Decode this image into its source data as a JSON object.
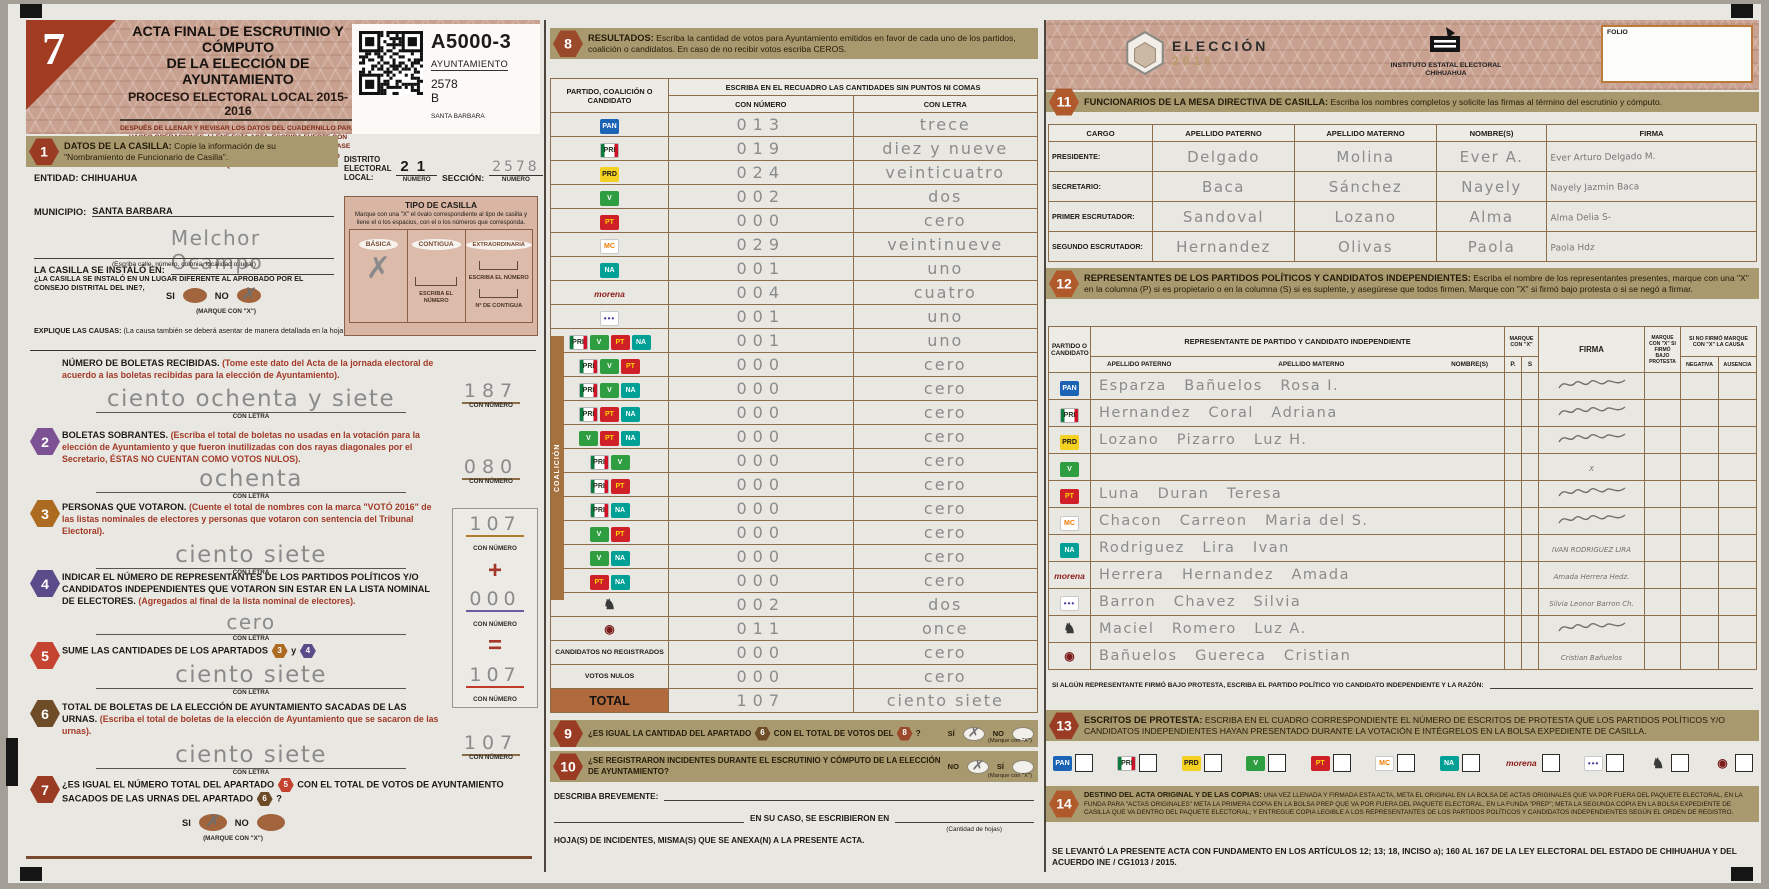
{
  "labels": {
    "con_letra": "CON LETRA",
    "con_numero": "CON NÚMERO",
    "numero_caption": "NÚMERO",
    "marque_mayus": "(MARQUE CON \"X\")",
    "marque_min": "(Marque con \"X\")",
    "si": "SI",
    "si_acc": "SÍ",
    "no": "NO",
    "y": "y",
    "x_glyph": "✗",
    "folio": "FOLIO"
  },
  "header": {
    "page_number": "7",
    "title1": "ACTA FINAL DE ESCRUTINIO Y CÓMPUTO",
    "title2": "DE LA ELECCIÓN DE AYUNTAMIENTO",
    "subtitle": "PROCESO ELECTORAL LOCAL 2015-2016",
    "instructions": "DESPUÉS DE LLENAR Y REVISAR LOS DATOS DEL CUADERNILLO PARA HACER OPERACIONES, LLENE ESTA ACTA. ESCRIBA FUERTE CON BOLÍGRAFO DE TINTA NEGRA Y PUNTO MEDIANO SOBRE UNA BASE SÓLIDA CON LETRA DE MOLDE EN MAYÚSCULAS APLICANDO SUFICIENTE APOYO PARA QUE LAS COPIAS SEAN LEGIBLES",
    "code": "A5000-3",
    "code_type": "AYUNTAMIENTO",
    "code_section": "2578",
    "code_casilla": "B",
    "code_locality": "SANTA BARBARA"
  },
  "s1": {
    "badge": "1",
    "title": "DATOS DE LA CASILLA:",
    "desc": "Copie la información de su \"Nombramiento de Funcionario de Casilla\".",
    "entidad_label": "ENTIDAD:",
    "entidad": "CHIHUAHUA",
    "distrito_label": "DISTRITO ELECTORAL LOCAL:",
    "distrito": "21",
    "seccion_label": "SECCIÓN:",
    "seccion": "2578",
    "municipio_label": "MUNICIPIO:",
    "municipio": "SANTA BARBARA",
    "instalado_label": "LA CASILLA SE INSTALÓ EN:",
    "instalado": "Melchor Ocampo",
    "address_hint": "(Escriba calle, número, colonia, localidad o lugar)",
    "ine_q": "¿LA CASILLA SE INSTALÓ EN UN LUGAR DIFERENTE AL APROBADO POR EL CONSEJO DISTRITAL DEL INE?,",
    "explique": "EXPLIQUE LAS CAUSAS:",
    "explique_hint": "(La causa también se deberá asentar de manera detallada en la hoja de incidentes)"
  },
  "tipo": {
    "title": "TIPO DE CASILLA",
    "hint": "Marque con una \"X\" el óvalo correspondiente al tipo de casilla y llene el o los espacios, con el o los números que corresponda.",
    "basica": "BÁSICA",
    "contigua": "CONTIGUA",
    "extraordinaria": "EXTRAORDINARIA",
    "escriba": "ESCRIBA EL NÚMERO",
    "no_contigua": "Nº DE CONTIGUA"
  },
  "boletas": {
    "title": "NÚMERO DE BOLETAS RECIBIDAS.",
    "note": "(Tome este dato del Acta de la jornada electoral de acuerdo a las boletas recibidas para la elección de Ayuntamiento).",
    "letra": "ciento ochenta y siete",
    "numero": "187"
  },
  "s2": {
    "badge": "2",
    "title": "BOLETAS SO​BRANTES.",
    "note": "(Escriba el total de boletas no usadas en la votación para la elección de Ayuntamiento y que fueron inutilizadas con dos rayas diagonales por el Secretario, ÉSTAS NO CUENTAN COMO VOTOS NULOS).",
    "letra": "ochenta",
    "numero": "080"
  },
  "s3": {
    "badge": "3",
    "title": "PERSONAS QUE VOTARON.",
    "note": "(Cuente el total de nombres con la marca \"VOTÓ 2016\" de las listas nominales de electores y personas que votaron con sentencia del Tribunal Electoral).",
    "letra": "ciento siete",
    "numero": "107"
  },
  "s4": {
    "badge": "4",
    "title": "INDICAR EL NÚMERO DE REPRESENTANTES DE LOS PARTIDOS POLÍTICOS Y/O CANDIDATOS INDEPENDIENTES QUE VOTARON SIN ESTAR EN LA LISTA NOMINAL DE ELECTORES.",
    "note": "(Agregados al final de la lista nominal de electores).",
    "letra": "cero",
    "numero": "000",
    "plus": "+"
  },
  "s5": {
    "badge": "5",
    "title": "SUME LAS CANTIDADES DE LOS APARTADOS",
    "ref1": "3",
    "ref2": "4",
    "letra": "ciento siete",
    "numero": "107",
    "equals": "="
  },
  "s6": {
    "badge": "6",
    "title": "TOTAL DE BOLETAS DE LA ELECCIÓN DE AYUNTAMIENTO SACADAS DE LAS URNAS.",
    "note": "(Escriba el total de boletas de la elección de Ayuntamiento que se sacaron de las urnas).",
    "letra": "ciento siete",
    "numero": "107"
  },
  "s7": {
    "badge": "7",
    "q1": "¿ES IGUAL EL NÚMERO TOTAL DEL APARTADO",
    "ref1": "5",
    "q2": "CON EL TOTAL DE VOTOS DE AYUNTAMIENTO SACADOS DE LAS URNAS DEL APARTADO",
    "ref2": "6",
    "q3": "?"
  },
  "results": {
    "badge": "8",
    "title": "RESULTADOS:",
    "desc": "Escriba la cantidad de votos para Ayuntamiento emitidos en favor de cada uno de los partidos, coalición o candidatos. En caso de no recibir votos escriba CEROS.",
    "col_party": "PARTIDO, COALICIÓN O CANDIDATO",
    "col_span": "ESCRIBA EN EL RECUADRO LAS CANTIDADES SIN PUNTOS NI COMAS",
    "col_num": "CON NÚMERO",
    "col_let": "CON LETRA",
    "coalicion_label": "COALICIÓN",
    "arrow": "▲",
    "rows": [
      {
        "parties": [
          "pan"
        ],
        "numero": "013",
        "letra": "trece"
      },
      {
        "parties": [
          "pri"
        ],
        "numero": "019",
        "letra": "diez y nueve"
      },
      {
        "parties": [
          "prd"
        ],
        "numero": "024",
        "letra": "veinticuatro"
      },
      {
        "parties": [
          "verde"
        ],
        "numero": "002",
        "letra": "dos"
      },
      {
        "parties": [
          "pt"
        ],
        "numero": "000",
        "letra": "cero"
      },
      {
        "parties": [
          "mc"
        ],
        "numero": "029",
        "letra": "veintinueve"
      },
      {
        "parties": [
          "na"
        ],
        "numero": "001",
        "letra": "uno"
      },
      {
        "parties": [
          "morena"
        ],
        "numero": "004",
        "letra": "cuatro"
      },
      {
        "parties": [
          "es"
        ],
        "numero": "001",
        "letra": "uno"
      },
      {
        "parties": [
          "pri",
          "verde",
          "pt",
          "na"
        ],
        "numero": "001",
        "letra": "uno",
        "coalition": true
      },
      {
        "parties": [
          "pri",
          "verde",
          "pt"
        ],
        "numero": "000",
        "letra": "cero",
        "coalition": true
      },
      {
        "parties": [
          "pri",
          "verde",
          "na"
        ],
        "numero": "000",
        "letra": "cero",
        "coalition": true
      },
      {
        "parties": [
          "pri",
          "pt",
          "na"
        ],
        "numero": "000",
        "letra": "cero",
        "coalition": true
      },
      {
        "parties": [
          "verde",
          "pt",
          "na"
        ],
        "numero": "000",
        "letra": "cero",
        "coalition": true
      },
      {
        "parties": [
          "pri",
          "verde"
        ],
        "numero": "000",
        "letra": "cero",
        "coalition": true
      },
      {
        "parties": [
          "pri",
          "pt"
        ],
        "numero": "000",
        "letra": "cero",
        "coalition": true
      },
      {
        "parties": [
          "pri",
          "na"
        ],
        "numero": "000",
        "letra": "cero",
        "coalition": true
      },
      {
        "parties": [
          "verde",
          "pt"
        ],
        "numero": "000",
        "letra": "cero",
        "coalition": true
      },
      {
        "parties": [
          "verde",
          "na"
        ],
        "numero": "000",
        "letra": "cero",
        "coalition": true
      },
      {
        "parties": [
          "pt",
          "na"
        ],
        "numero": "000",
        "letra": "cero",
        "coalition": true
      },
      {
        "parties": [
          "ind1"
        ],
        "numero": "002",
        "letra": "dos"
      },
      {
        "parties": [
          "ind2"
        ],
        "numero": "011",
        "letra": "once"
      },
      {
        "label": "CANDIDATOS NO REGISTRADOS",
        "numero": "000",
        "letra": "cero"
      },
      {
        "label": "VOTOS NULOS",
        "numero": "000",
        "letra": "cero"
      }
    ],
    "total_label": "TOTAL",
    "total_numero": "107",
    "total_letra": "ciento siete"
  },
  "s9": {
    "badge": "9",
    "q1": "¿ES IGUAL LA CANTIDAD DEL APARTADO",
    "ref1": "6",
    "q2": "CON EL TOTAL DE VOTOS DEL",
    "ref2": "8",
    "q3": "?"
  },
  "s10": {
    "badge": "10",
    "q": "¿SE REGISTRARON INCIDENTES DURANTE EL ESCRUTINIO Y CÓMPUTO DE LA ELECCIÓN DE AYUNTAMIENTO?"
  },
  "incidentes": {
    "describa": "DESCRIBA BREVEMENTE:",
    "en_su_caso": "EN SU CASO, SE ESCRIBIERON EN",
    "cantidad": "(Cantidad de hojas)",
    "hojas": "HOJA(S) DE INCIDENTES,",
    "misma": "MISMA(S) QUE SE ANEXA(N) A LA PRESENTE ACTA."
  },
  "org": {
    "eleccion": "ELECCIÓN",
    "anio": "2016",
    "iee1": "INSTITUTO ESTATAL ELECTORAL",
    "iee2": "CHIHUAHUA"
  },
  "s11": {
    "badge": "11",
    "title": "FUNCIONARIOS DE LA MESA DIRECTIVA DE CASILLA:",
    "desc": "Escriba los nombres completos y solicite las firmas al término del escrutinio y cómputo.",
    "h_cargo": "CARGO",
    "h_paterno": "APELLIDO PATERNO",
    "h_materno": "APELLIDO MATERNO",
    "h_nombres": "NOMBRE(S)",
    "h_firma": "FIRMA",
    "rows": [
      {
        "cargo": "PRESIDENTE:",
        "paterno": "Delgado",
        "materno": "Molina",
        "nombres": "Ever A.",
        "firma": "Ever Arturo Delgado M."
      },
      {
        "cargo": "SECRETARIO:",
        "paterno": "Baca",
        "materno": "Sánchez",
        "nombres": "Nayely",
        "firma": "Nayely Jazmin Baca"
      },
      {
        "cargo": "PRIMER ESCRUTADOR:",
        "paterno": "Sandoval",
        "materno": "Lozano",
        "nombres": "Alma",
        "firma": "Alma Delia S-"
      },
      {
        "cargo": "SEGUNDO ESCRUTADOR:",
        "paterno": "Hernandez",
        "materno": "Olivas",
        "nombres": "Paola",
        "firma": "Paola Hdz"
      }
    ]
  },
  "s12": {
    "badge": "12",
    "title": "REPRESENTANTES DE LOS PARTIDOS POLÍTICOS Y CANDIDATOS INDEPENDIENTES:",
    "desc": "Escriba el nombre de los representantes presentes, marque con una \"X\" en la columna (P) si es propietario o en la columna (S) si es suplente, y asegúrese que todos firmen. Marque con \"X\" si firmó bajo protesta o si se negó a firmar.",
    "h_partido": "PARTIDO O CANDIDATO",
    "h_rep": "REPRESENTANTE DE PARTIDO Y CANDIDATO INDEPENDIENTE",
    "h_paterno": "APELLIDO PATERNO",
    "h_materno": "APELLIDO MATERNO",
    "h_nombres": "NOMBRE(S)",
    "h_marque": "MARQUE CON \"X\"",
    "h_p": "P.",
    "h_s": "S",
    "h_firma": "FIRMA",
    "h_protesta": "MARQUE CON \"X\" SI FIRMÓ BAJO PROTESTA",
    "h_causa": "SI NO FIRMÓ MARQUE CON \"X\" LA CAUSA",
    "h_negativa": "NEGATIVA",
    "h_ausencia": "AUSENCIA",
    "rows": [
      {
        "party": "pan",
        "paterno": "Esparza",
        "materno": "Bañuelos",
        "nombres": "Rosa I.",
        "firma": "",
        "scribble": true
      },
      {
        "party": "pri",
        "paterno": "Hernandez",
        "materno": "Coral",
        "nombres": "Adriana",
        "firma": "",
        "scribble": true
      },
      {
        "party": "prd",
        "paterno": "Lozano",
        "materno": "Pizarro",
        "nombres": "Luz H.",
        "firma": "",
        "scribble": true
      },
      {
        "party": "verde",
        "paterno": "",
        "materno": "",
        "nombres": "",
        "firma": "X",
        "scribble": false
      },
      {
        "party": "pt",
        "paterno": "Luna",
        "materno": "Duran",
        "nombres": "Teresa",
        "firma": "",
        "scribble": true
      },
      {
        "party": "mc",
        "paterno": "Chacon",
        "materno": "Carreon",
        "nombres": "Maria del S.",
        "firma": "",
        "scribble": true
      },
      {
        "party": "na",
        "paterno": "Rodriguez",
        "materno": "Lira",
        "nombres": "Ivan",
        "firma": "IVAN RODRIGUEZ LIRA",
        "scribble": false
      },
      {
        "party": "morena",
        "paterno": "Herrera",
        "materno": "Hernandez",
        "nombres": "Amada",
        "firma": "Amada Herrera Hedz.",
        "scribble": false
      },
      {
        "party": "es",
        "paterno": "Barron",
        "materno": "Chavez",
        "nombres": "Silvia",
        "firma": "Silvia Leonor Barron Ch.",
        "scribble": false
      },
      {
        "party": "ind1",
        "paterno": "Maciel",
        "materno": "Romero",
        "nombres": "Luz A.",
        "firma": "",
        "scribble": true
      },
      {
        "party": "ind2",
        "paterno": "Bañuelos",
        "materno": "Guereca",
        "nombres": "Cristian",
        "firma": "Cristian Bañuelos",
        "scribble": false
      }
    ],
    "protesta_line": "SI ALGÚN REPRESENTANTE FIRMÓ BAJO PROTESTA, ESCRIBA EL PARTIDO POLÍTICO Y/O CANDIDATO INDEPENDIENTE Y LA RAZÓN:"
  },
  "s13": {
    "badge": "13",
    "title": "ESCRITOS DE PROTESTA:",
    "desc": "ESCRIBA EN EL CUADRO CORRESPONDIENTE EL NÚMERO DE ESCRITOS DE PROTESTA QUE LOS PARTIDOS POLÍTICOS Y/O CANDIDATOS INDEPENDIENTES HAYAN PRESENTADO DURANTE LA VOTACIÓN E INTÉGRELOS EN LA BOLSA EXPEDIENTE DE CASILLA.",
    "items": [
      "pan",
      "pri",
      "prd",
      "verde",
      "pt",
      "mc",
      "na",
      "morena",
      "es",
      "ind1",
      "ind2"
    ]
  },
  "s14": {
    "badge": "14",
    "title": "DESTINO DEL ACTA ORIGINAL Y DE LAS COPIAS:",
    "desc": "UNA VEZ LLENADA Y FIRMADA ESTA ACTA, META EL ORIGINAL EN LA BOLSA DE ACTAS ORIGINALES QUE VA POR FUERA DEL PAQUETE ELECTORAL, EN LA FUNDA PARA \"ACTAS ORIGINALES\" META LA PRIMERA COPIA EN LA BOLSA PREP QUE VA POR FUERA DEL PAQUETE ELECTORAL, EN LA FUNDA \"PREP\"; META LA SEGUNDA COPIA EN LA BOLSA EXPEDIENTE DE CASILLA QUE VA DENTRO DEL PAQUETE ELECTORAL; Y ENTREGUE COPIA LEGIBLE A LOS REPRESENTANTES DE LOS PARTIDOS POLÍTICOS Y CANDIDATOS INDEPENDIENTES SEGÚN EL ORDEN DE REGISTRO.",
    "legal": "SE LEVANTÓ LA PRESENTE ACTA CON FUNDAMENTO EN LOS ARTÍCULOS 12; 13; 18, INCISO a); 160 AL 167 DE LA LEY  ELECTORAL DEL ESTADO DE CHIHUAHUA Y DEL ACUERDO INE / CG1013 / 2015."
  },
  "parties": {
    "pan": {
      "name": "pan",
      "abbr": "PAN"
    },
    "pri": {
      "name": "pri",
      "abbr": "PRI"
    },
    "prd": {
      "name": "prd",
      "abbr": "PRD"
    },
    "verde": {
      "name": "partido-verde",
      "abbr": "V"
    },
    "pt": {
      "name": "pt",
      "abbr": "PT"
    },
    "mc": {
      "name": "movimiento-ciudadano",
      "abbr": "MC"
    },
    "na": {
      "name": "nueva-alianza",
      "abbr": "NA"
    },
    "morena": {
      "name": "morena",
      "abbr": "morena"
    },
    "es": {
      "name": "encuentro-social",
      "abbr": "•••"
    },
    "ind1": {
      "name": "candidato-independiente-1",
      "abbr": "♞"
    },
    "ind2": {
      "name": "candidato-independiente-2",
      "abbr": "◉"
    }
  },
  "marks": [
    "s1-no",
    "tipo-basica",
    "s7-si",
    "s9-si",
    "s10-no"
  ],
  "colors": {
    "accent_rust": "#9a3c24",
    "banner_tan": "#a89a6e",
    "pattern_pink": "#c9a190",
    "pencil_gray": "#8b8b8b"
  }
}
